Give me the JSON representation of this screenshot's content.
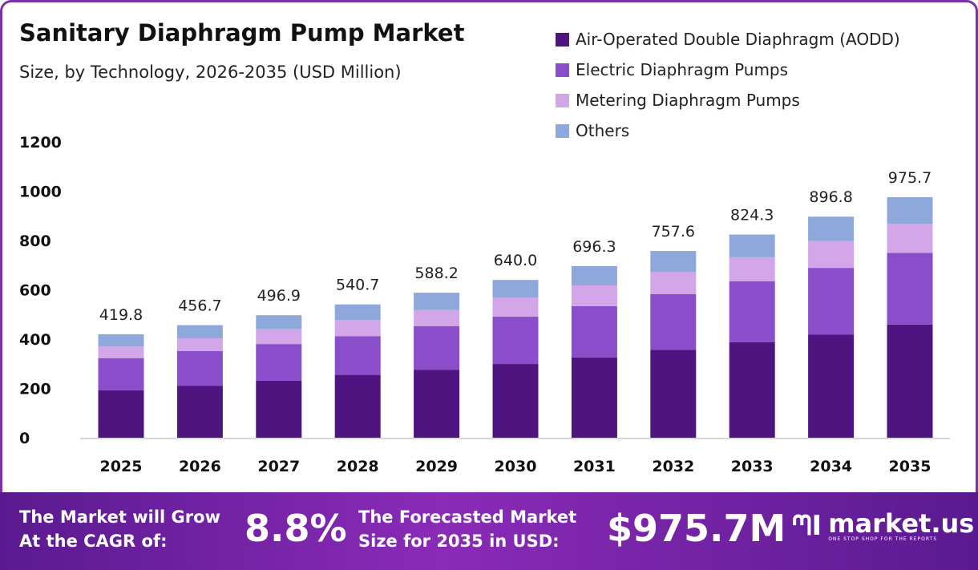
{
  "title": "Sanitary Diaphragm Pump Market",
  "subtitle": "Size, by Technology, 2026-2035 (USD Million)",
  "chart_data": {
    "type": "bar",
    "stacked": true,
    "categories": [
      "2025",
      "2026",
      "2027",
      "2028",
      "2029",
      "2030",
      "2031",
      "2032",
      "2033",
      "2034",
      "2035"
    ],
    "ylim": [
      0,
      1200
    ],
    "yticks": [
      0,
      200,
      400,
      600,
      800,
      1000,
      1200
    ],
    "grid": false,
    "legend": "top-right",
    "series": [
      {
        "name": "Air-Operated Double Diaphragm (AODD)",
        "color": "#4e1580",
        "values": [
          192,
          211,
          231,
          255,
          276,
          299,
          326,
          356,
          388,
          419,
          459
        ]
      },
      {
        "name": "Electric Diaphragm Pumps",
        "color": "#8a4ecb",
        "values": [
          131,
          141,
          149,
          157,
          177,
          192,
          208,
          227,
          247,
          270,
          291
        ]
      },
      {
        "name": "Metering Diaphragm Pumps",
        "color": "#d3a6ea",
        "values": [
          47,
          51,
          60,
          66,
          65,
          78,
          84,
          90,
          97,
          109,
          118
        ]
      },
      {
        "name": "Others",
        "color": "#8ea8dc",
        "values": [
          49.8,
          53.7,
          56.9,
          62.7,
          70.2,
          71.0,
          78.3,
          84.6,
          92.3,
          98.8,
          107.7
        ]
      }
    ],
    "totals": [
      "419.8",
      "456.7",
      "496.9",
      "540.7",
      "588.2",
      "640.0",
      "696.3",
      "757.6",
      "824.3",
      "896.8",
      "975.7"
    ]
  },
  "footer": {
    "cagr_label": "The Market will Grow At the CAGR of:",
    "cagr_value": "8.8%",
    "forecast_label": "The Forecasted Market Size for 2035 in USD:",
    "forecast_value": "$975.7M",
    "brand": "market.us",
    "tagline": "ONE STOP SHOP FOR THE REPORTS"
  }
}
